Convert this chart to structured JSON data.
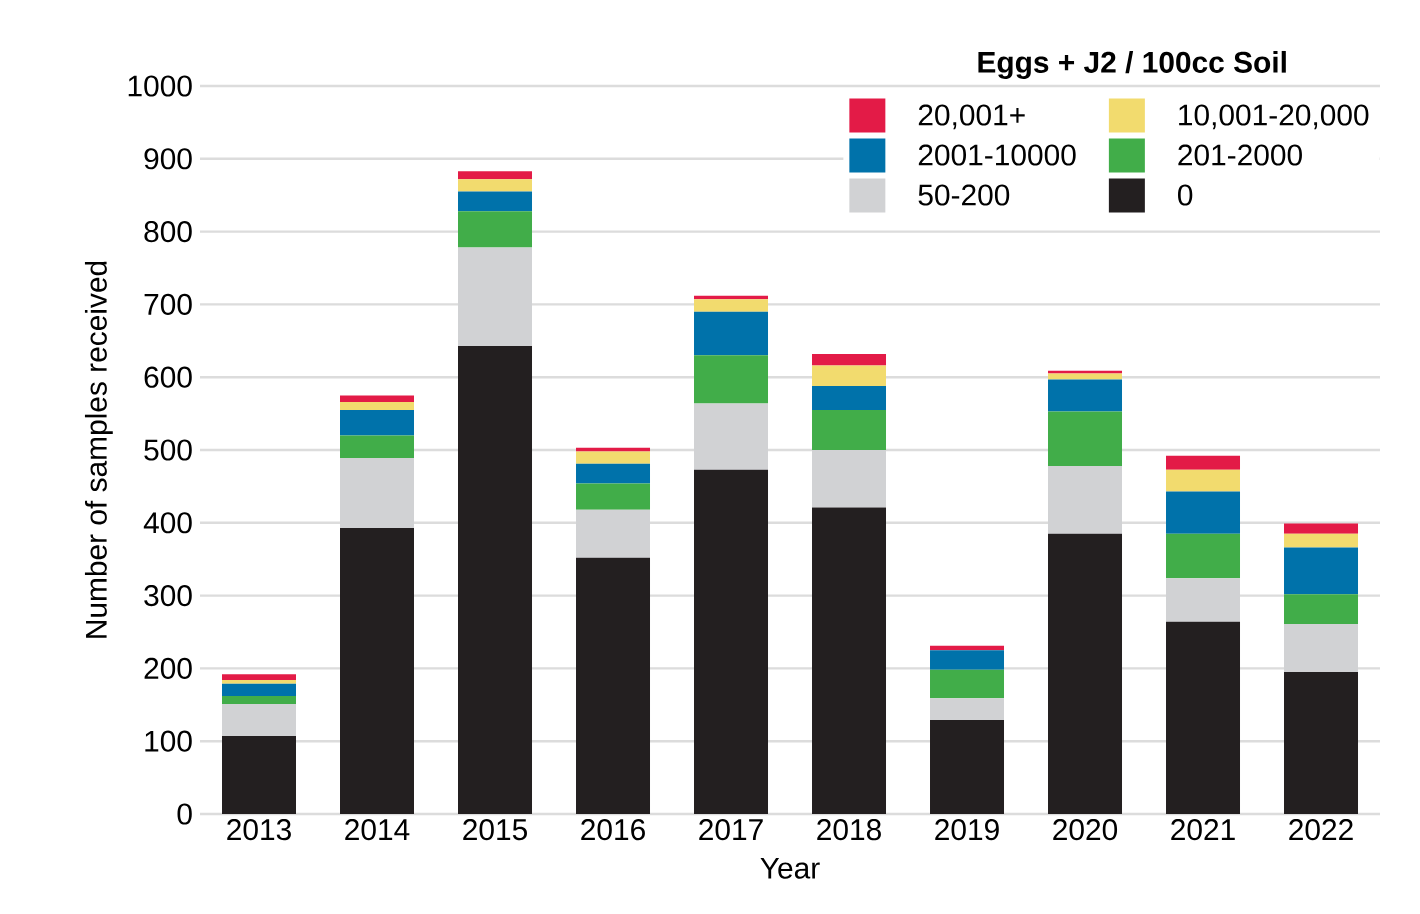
{
  "chart_data": {
    "type": "bar",
    "stacked": true,
    "xlabel": "Year",
    "ylabel": "Number of samples received",
    "legend_title": "Eggs + J2 / 100cc Soil",
    "categories": [
      "2013",
      "2014",
      "2015",
      "2016",
      "2017",
      "2018",
      "2019",
      "2020",
      "2021",
      "2022"
    ],
    "series": [
      {
        "name": "0",
        "color": "#231f20",
        "values": [
          107,
          393,
          643,
          352,
          473,
          421,
          129,
          385,
          264,
          195
        ]
      },
      {
        "name": "50-200",
        "color": "#d1d2d4",
        "values": [
          44,
          96,
          135,
          66,
          91,
          79,
          30,
          93,
          60,
          66
        ]
      },
      {
        "name": "201-2000",
        "color": "#41ad49",
        "values": [
          11,
          31,
          50,
          36,
          66,
          55,
          39,
          75,
          61,
          41
        ]
      },
      {
        "name": "2001-10000",
        "color": "#0072aa",
        "values": [
          17,
          35,
          27,
          27,
          60,
          33,
          27,
          44,
          58,
          64
        ]
      },
      {
        "name": "10,001-20,000",
        "color": "#f2db6e",
        "values": [
          5,
          11,
          17,
          17,
          17,
          28,
          0,
          8,
          30,
          19
        ]
      },
      {
        "name": "20,001+",
        "color": "#e31b47",
        "values": [
          8,
          9,
          11,
          5,
          5,
          16,
          6,
          4,
          19,
          14
        ]
      }
    ],
    "ylim": [
      0,
      1000
    ],
    "yticks": [
      0,
      100,
      200,
      300,
      400,
      500,
      600,
      700,
      800,
      900,
      1000
    ],
    "grid": "y",
    "legend": "top right"
  }
}
